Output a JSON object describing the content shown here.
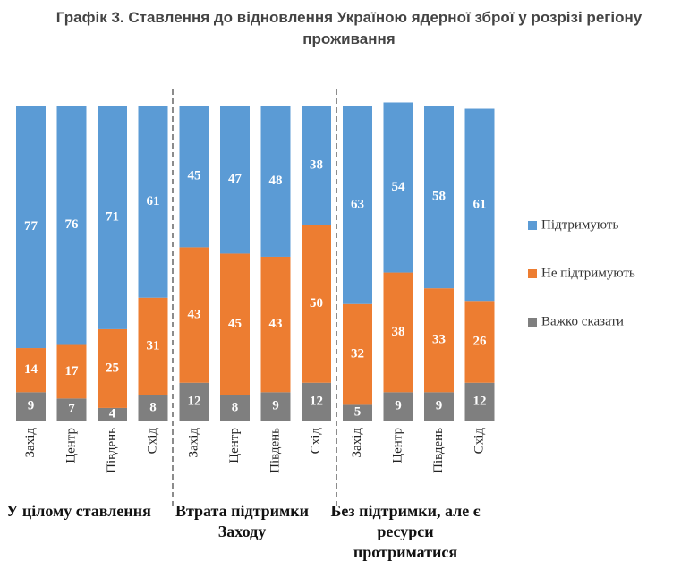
{
  "chart_data": {
    "type": "bar",
    "stacked": true,
    "title": "Графік 3. Ставлення до відновлення Україною ядерної зброї у розрізі регіону проживання",
    "groups": [
      {
        "name": "У цілому ставлення",
        "categories": [
          "Захід",
          "Центр",
          "Південь",
          "Схід"
        ]
      },
      {
        "name": "Втрата підтримки Заходу",
        "categories": [
          "Захід",
          "Центр",
          "Південь",
          "Схід"
        ]
      },
      {
        "name": "Без підтримки, але є ресурси протриматися",
        "categories": [
          "Захід",
          "Центр",
          "Південь",
          "Схід"
        ]
      }
    ],
    "series": [
      {
        "name": "Підтримують",
        "color": "#5b9bd5",
        "values": [
          77,
          76,
          71,
          61,
          45,
          47,
          48,
          38,
          63,
          54,
          58,
          61
        ]
      },
      {
        "name": "Не підтримують",
        "color": "#ed7d31",
        "values": [
          14,
          17,
          25,
          31,
          43,
          45,
          43,
          50,
          32,
          38,
          33,
          26
        ]
      },
      {
        "name": "Важко сказати",
        "color": "#7f7f7f",
        "values": [
          9,
          7,
          4,
          8,
          12,
          8,
          9,
          12,
          5,
          9,
          9,
          12
        ]
      }
    ],
    "ylim": [
      0,
      100
    ],
    "legend": "right"
  }
}
